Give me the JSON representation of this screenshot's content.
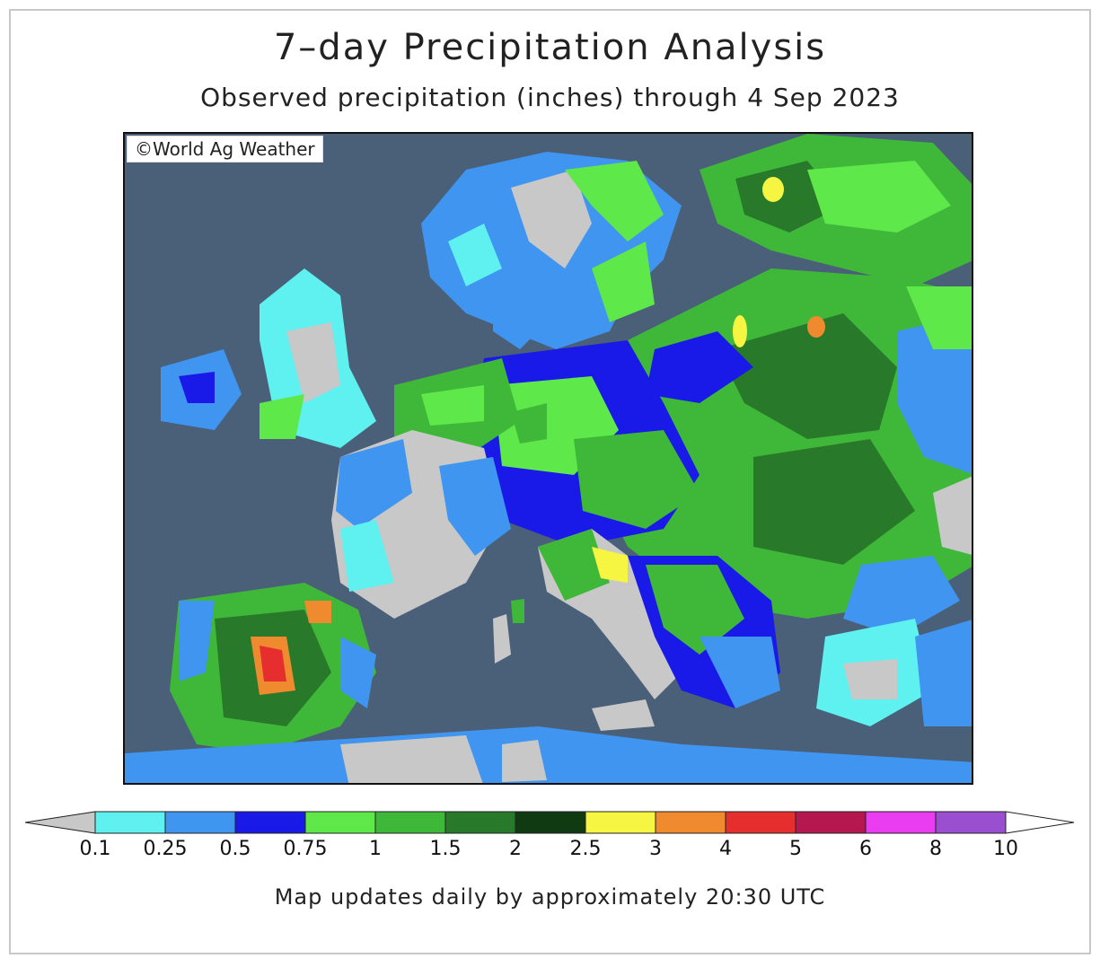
{
  "title": "7–day Precipitation Analysis",
  "subtitle": "Observed precipitation (inches) through 4 Sep 2023",
  "copyright": "©World Ag Weather",
  "footer": "Map updates daily by approximately 20:30 UTC",
  "colors": {
    "water": "#4a5f78",
    "lt0_1": "#c8c8c8",
    "c0_1": "#5ff0f0",
    "c0_25": "#3f95ef",
    "c0_5": "#1a1ae8",
    "c0_75": "#5fe84a",
    "c1": "#3fb83a",
    "c1_5": "#287a2a",
    "c2": "#0f3a12",
    "c2_5": "#f5f542",
    "c3": "#f08a2e",
    "c4": "#e62e2e",
    "c5": "#b5184f",
    "c6": "#ea3cf0",
    "c8": "#9a4fd0",
    "gt10": "#ffffff"
  },
  "legend": {
    "ticks": [
      "0.1",
      "0.25",
      "0.5",
      "0.75",
      "1",
      "1.5",
      "2",
      "2.5",
      "3",
      "4",
      "5",
      "6",
      "8",
      "10"
    ]
  }
}
